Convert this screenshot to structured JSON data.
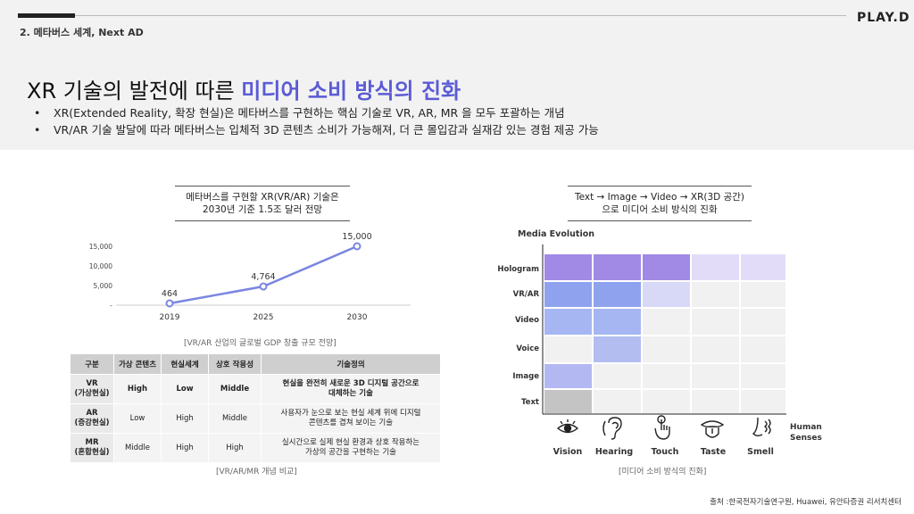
{
  "header": {
    "section": "2. 메타버스 세계, Next AD",
    "logo": "PLAY.D"
  },
  "title": {
    "prefix": "XR 기술의 발전에 따른 ",
    "highlight": "미디어 소비 방식의 진화"
  },
  "bullets": [
    "XR(Extended Reality, 확장 현실)은 메타버스를 구현하는 핵심 기술로 VR, AR, MR 을 모두 포괄하는 개념",
    "VR/AR 기술 발달에 따라 메타버스는 입체적 3D 콘텐츠 소비가 가능해져, 더 큰 몰입감과 실재감 있는 경험 제공 가능"
  ],
  "left_caption": [
    "메타버스를 구현할 XR(VR/AR) 기술은",
    "2030년 기준 1.5조 달러 전망"
  ],
  "left_source": "[VR/AR 산업의 글로벌 GDP 창출 규모 전망]",
  "table": {
    "headers": [
      "구분",
      "가상 콘텐츠",
      "현실세계",
      "상호 작용성",
      "기술정의"
    ],
    "rows": [
      {
        "name1": "VR",
        "name2": "(가상현실)",
        "c1": "High",
        "c2": "Low",
        "c3": "Middle",
        "d1": "현실을 완전히 새로운 3D 디지털 공간으로",
        "d2": "대체하는 기술"
      },
      {
        "name1": "AR",
        "name2": "(증강현실)",
        "c1": "Low",
        "c2": "High",
        "c3": "Middle",
        "d1": "사용자가 눈으로 보는 현실 세계 위에 디지털",
        "d2": "콘텐츠를 겹쳐 보이는 기술"
      },
      {
        "name1": "MR",
        "name2": "(혼합현실)",
        "c1": "Middle",
        "c2": "High",
        "c3": "High",
        "d1": "실시간으로 실제 현실 환경과 상호 작용하는",
        "d2": "가상의 공간을 구현하는 기술"
      }
    ]
  },
  "table_source": "[VR/AR/MR 개념 비교]",
  "right_caption": [
    "Text → Image → Video → XR(3D 공간)",
    "으로 미디어 소비 방식의 진화"
  ],
  "right_source": "[미디어 소비 방식의 진화]",
  "matrix": {
    "y_title": "Media Evolution",
    "x_title": [
      "Human",
      "Senses"
    ],
    "rows": [
      "Hologram",
      "VR/AR",
      "Video",
      "Voice",
      "Image",
      "Text"
    ],
    "senses": [
      "Vision",
      "Hearing",
      "Touch",
      "Taste",
      "Smell"
    ],
    "colors": {
      "strong": "#a08ae6",
      "blue": "#8ea2ee",
      "light_blue": "#a6b6f2",
      "pale": "#d8d9f7",
      "pale_purple": "#e2dcf9",
      "grey": "#c4c4c4",
      "empty": "#f1f1f1"
    }
  },
  "footnote": "출처 :한국전자기술연구원, Huawei, 유안타증권 리서치센터",
  "chart_data": {
    "type": "line",
    "title": "메타버스를 구현할 XR(VR/AR) 기술은 2030년 기준 1.5조 달러 전망",
    "categories": [
      "2019",
      "2025",
      "2030"
    ],
    "values": [
      464,
      4764,
      15000
    ],
    "value_labels": [
      "464",
      "4,764",
      "15,000"
    ],
    "y_ticks": [
      "15,000",
      "10,000",
      "5,000",
      "-"
    ],
    "y_tick_values": [
      15000,
      10000,
      5000,
      0
    ],
    "ylim": [
      0,
      15000
    ],
    "series_color": "#7b86e0",
    "xlabel": "",
    "ylabel": ""
  }
}
